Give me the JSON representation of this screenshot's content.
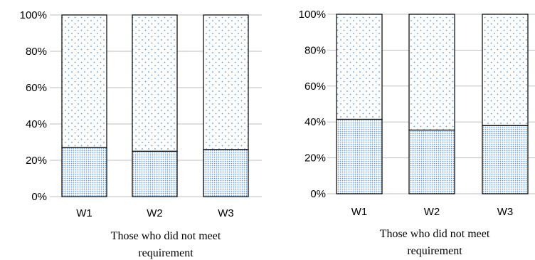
{
  "chart_data": [
    {
      "type": "bar",
      "stacked": true,
      "percent": true,
      "categories": [
        "W1",
        "W2",
        "W3"
      ],
      "series": [
        {
          "values": [
            27,
            25,
            26
          ]
        },
        {
          "values": [
            73,
            75,
            74
          ]
        }
      ],
      "xlabel_lines": [
        "Those who did not meet",
        "requirement"
      ],
      "ylim": [
        0,
        100
      ],
      "yticks": [
        "0%",
        "20%",
        "40%",
        "60%",
        "80%",
        "100%"
      ],
      "grid": true,
      "colors": {
        "dots": "#5b9bd5",
        "border": "#000000",
        "grid": "#bfbfbf"
      }
    },
    {
      "type": "bar",
      "stacked": true,
      "percent": true,
      "categories": [
        "W1",
        "W2",
        "W3"
      ],
      "series": [
        {
          "values": [
            41.5,
            35.5,
            38
          ]
        },
        {
          "values": [
            58.5,
            64.5,
            62
          ]
        }
      ],
      "xlabel_lines": [
        "Those who did not meet",
        "requirement"
      ],
      "ylim": [
        0,
        100
      ],
      "yticks": [
        "0%",
        "20%",
        "40%",
        "60%",
        "80%",
        "100%"
      ],
      "grid": true,
      "colors": {
        "dots": "#5b9bd5",
        "border": "#000000",
        "grid": "#bfbfbf"
      }
    }
  ]
}
